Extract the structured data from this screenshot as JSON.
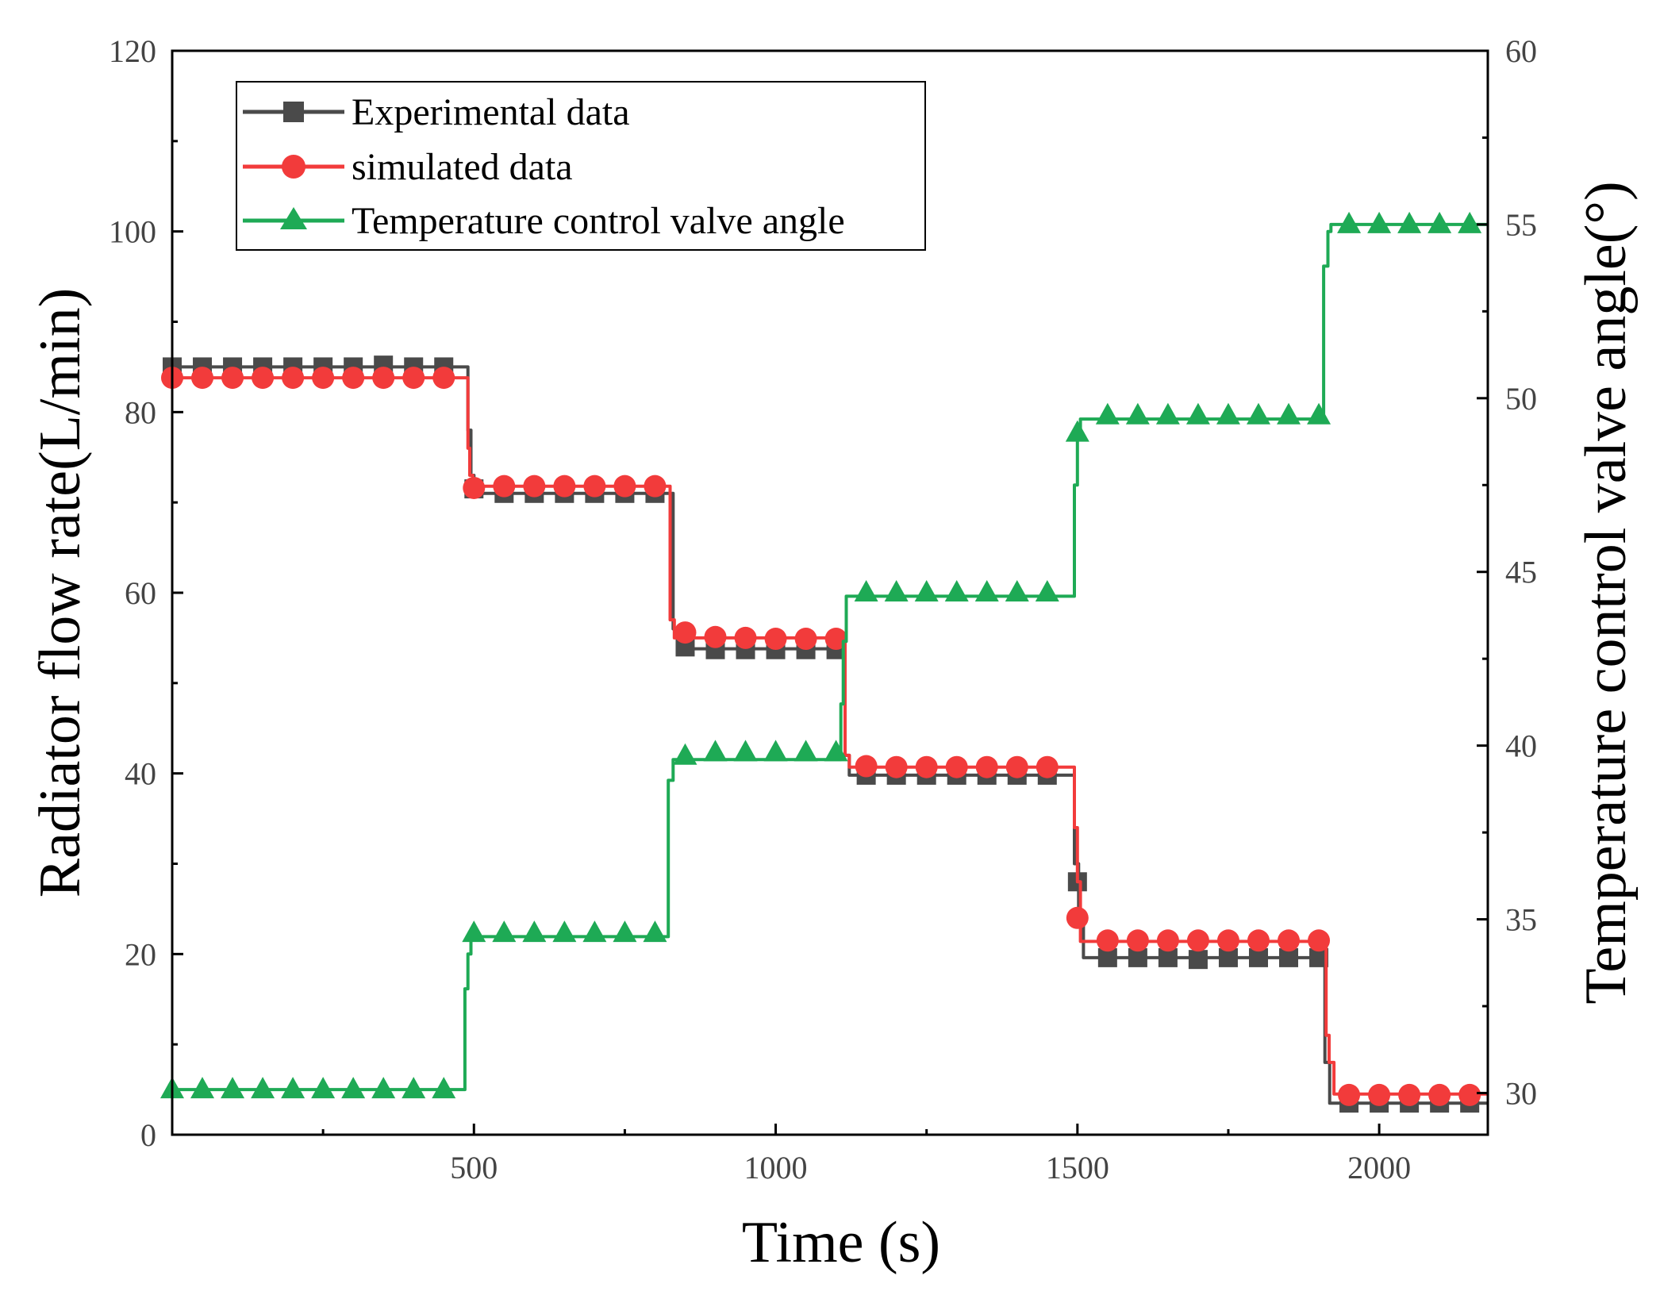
{
  "chart_data": {
    "type": "line",
    "title": "",
    "xlabel": "Time (s)",
    "ylabel": "Radiator flow rate(L/min)",
    "y2label": "Temperature control valve angle(°)",
    "xlim": [
      0,
      2180
    ],
    "ylim": [
      0,
      120
    ],
    "y2lim": [
      28.8,
      60
    ],
    "x_ticks": [
      500,
      1000,
      1500,
      2000
    ],
    "y_ticks": [
      0,
      20,
      40,
      60,
      80,
      100,
      120
    ],
    "y2_ticks": [
      30,
      35,
      40,
      45,
      50,
      55,
      60
    ],
    "grid": false,
    "legend_position": "top-left",
    "series": [
      {
        "name": "Experimental data",
        "axis": "left",
        "color": "#4a4a4a",
        "marker": "square",
        "line_x": [
          0,
          490,
          490,
          495,
          495,
          500,
          500,
          830,
          830,
          838,
          838,
          1115,
          1115,
          1122,
          1122,
          1495,
          1495,
          1502,
          1502,
          1510,
          1510,
          1910,
          1910,
          1918,
          1918,
          2180
        ],
        "line_y": [
          85,
          85,
          78,
          78,
          73,
          73,
          71,
          71,
          56,
          56,
          53.8,
          53.8,
          42,
          42,
          39.8,
          39.8,
          30,
          30,
          24,
          24,
          19.6,
          19.6,
          8,
          8,
          3.5,
          3.5
        ],
        "marker_x": [
          0,
          50,
          100,
          150,
          200,
          250,
          300,
          350,
          400,
          450,
          500,
          550,
          600,
          650,
          700,
          750,
          800,
          850,
          900,
          950,
          1000,
          1050,
          1100,
          1150,
          1200,
          1250,
          1300,
          1350,
          1400,
          1450,
          1500,
          1550,
          1600,
          1650,
          1700,
          1750,
          1800,
          1850,
          1900,
          1950,
          2000,
          2050,
          2100,
          2150
        ],
        "marker_y": [
          85,
          85,
          85,
          85,
          85,
          85,
          85,
          85.2,
          85,
          85,
          71.5,
          71,
          71,
          71,
          71,
          71,
          71,
          54,
          53.7,
          53.7,
          53.7,
          53.7,
          53.7,
          39.8,
          39.8,
          39.8,
          39.8,
          39.8,
          39.8,
          39.8,
          28,
          19.6,
          19.6,
          19.6,
          19.4,
          19.6,
          19.6,
          19.6,
          19.6,
          3.5,
          3.5,
          3.5,
          3.5,
          3.5
        ]
      },
      {
        "name": "simulated data",
        "axis": "left",
        "color": "#f23b3b",
        "marker": "circle",
        "line_x": [
          0,
          490,
          490,
          493,
          493,
          498,
          498,
          825,
          825,
          832,
          832,
          1115,
          1115,
          1122,
          1122,
          1495,
          1495,
          1500,
          1500,
          1505,
          1505,
          1912,
          1912,
          1917,
          1917,
          1925,
          1925,
          2180
        ],
        "line_y": [
          83.8,
          83.8,
          76,
          76,
          73,
          73,
          71.8,
          71.8,
          57,
          57,
          55,
          55,
          42,
          42,
          40.7,
          40.7,
          34,
          34,
          28,
          28,
          21.4,
          21.4,
          11,
          11,
          8,
          8,
          4.5,
          4.5
        ],
        "marker_x": [
          0,
          50,
          100,
          150,
          200,
          250,
          300,
          350,
          400,
          450,
          500,
          550,
          600,
          650,
          700,
          750,
          800,
          850,
          900,
          950,
          1000,
          1050,
          1100,
          1150,
          1200,
          1250,
          1300,
          1350,
          1400,
          1450,
          1500,
          1550,
          1600,
          1650,
          1700,
          1750,
          1800,
          1850,
          1900,
          1950,
          2000,
          2050,
          2100,
          2150
        ],
        "marker_y": [
          83.8,
          83.8,
          83.8,
          83.8,
          83.8,
          83.8,
          83.8,
          83.8,
          83.8,
          83.8,
          71.6,
          71.8,
          71.8,
          71.8,
          71.8,
          71.8,
          71.8,
          55.6,
          55.1,
          55,
          54.9,
          54.9,
          54.9,
          40.8,
          40.7,
          40.7,
          40.7,
          40.7,
          40.7,
          40.7,
          24,
          21.5,
          21.5,
          21.5,
          21.5,
          21.5,
          21.5,
          21.5,
          21.5,
          4.4,
          4.4,
          4.4,
          4.4,
          4.4
        ]
      },
      {
        "name": "Temperature control valve angle",
        "axis": "right",
        "color": "#1eaa55",
        "marker": "triangle",
        "line_x": [
          0,
          485,
          485,
          490,
          490,
          495,
          495,
          822,
          822,
          830,
          830,
          1108,
          1108,
          1112,
          1112,
          1117,
          1117,
          1495,
          1495,
          1500,
          1500,
          1505,
          1505,
          1908,
          1908,
          1915,
          1915,
          1920,
          1920,
          2180
        ],
        "line_y": [
          30.1,
          30.1,
          33,
          33,
          34,
          34,
          34.5,
          34.5,
          39,
          39,
          39.6,
          39.6,
          41.2,
          41.2,
          43,
          43,
          44.3,
          44.3,
          47.5,
          47.5,
          49,
          49,
          49.4,
          49.4,
          53.8,
          53.8,
          54.8,
          54.8,
          55,
          55
        ],
        "marker_x": [
          0,
          50,
          100,
          150,
          200,
          250,
          300,
          350,
          400,
          450,
          500,
          550,
          600,
          650,
          700,
          750,
          800,
          850,
          900,
          950,
          1000,
          1050,
          1100,
          1150,
          1200,
          1250,
          1300,
          1350,
          1400,
          1450,
          1500,
          1550,
          1600,
          1650,
          1700,
          1750,
          1800,
          1850,
          1900,
          1950,
          2000,
          2050,
          2100,
          2150
        ],
        "marker_y": [
          30.1,
          30.1,
          30.1,
          30.1,
          30.1,
          30.1,
          30.1,
          30.1,
          30.1,
          30.1,
          34.6,
          34.6,
          34.6,
          34.6,
          34.6,
          34.6,
          34.6,
          39.7,
          39.8,
          39.8,
          39.8,
          39.8,
          39.8,
          44.4,
          44.4,
          44.4,
          44.4,
          44.4,
          44.4,
          44.4,
          49,
          49.5,
          49.5,
          49.5,
          49.5,
          49.5,
          49.5,
          49.5,
          49.5,
          55,
          55,
          55,
          55,
          55
        ]
      }
    ]
  }
}
